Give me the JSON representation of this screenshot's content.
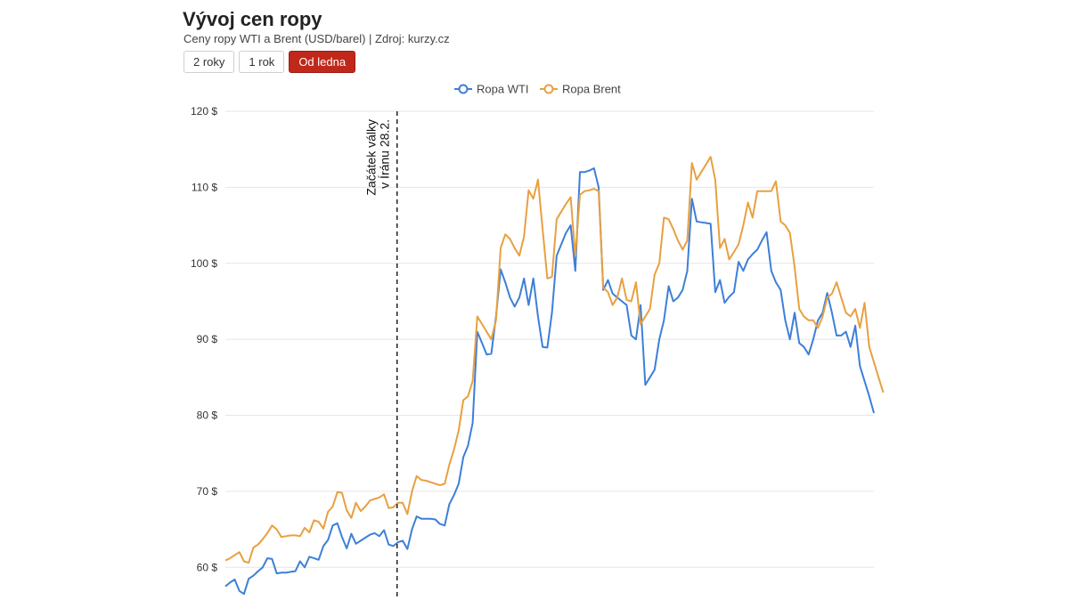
{
  "header": {
    "title": "Vývoj cen ropy",
    "subtitle": "Ceny ropy WTI a Brent (USD/barel) | Zdroj: kurzy.cz"
  },
  "range_buttons": [
    {
      "label": "2 roky",
      "active": false
    },
    {
      "label": "1 rok",
      "active": false
    },
    {
      "label": "Od ledna",
      "active": true
    }
  ],
  "chart_data": {
    "type": "line",
    "ylim": [
      55,
      120
    ],
    "yticks": [
      60,
      70,
      80,
      90,
      100,
      110,
      120
    ],
    "ytick_labels": [
      "60 $",
      "70 $",
      "80 $",
      "90 $",
      "100 $",
      "110 $",
      "120 $"
    ],
    "grid": true,
    "legend": "top-center",
    "annotation": {
      "at_index": 36.8,
      "lines": [
        "Začátek války",
        "v Íránu 28.2."
      ]
    },
    "series": [
      {
        "name": "Ropa WTI",
        "color": "#3d7fd9",
        "values": [
          57.5,
          58.0,
          58.4,
          56.9,
          56.5,
          58.5,
          58.9,
          59.5,
          60.0,
          61.2,
          61.1,
          59.2,
          59.3,
          59.3,
          59.4,
          59.5,
          60.8,
          60.0,
          61.4,
          61.2,
          61.0,
          62.8,
          63.6,
          65.5,
          65.8,
          64.0,
          62.5,
          64.4,
          63.1,
          63.5,
          63.9,
          64.3,
          64.5,
          64.1,
          64.9,
          63.0,
          62.8,
          63.3,
          63.5,
          62.4,
          65.0,
          66.7,
          66.4,
          66.4,
          66.4,
          66.3,
          65.7,
          65.5,
          68.3,
          69.5,
          71.0,
          74.5,
          76.0,
          79.0,
          91.0,
          89.5,
          88.0,
          88.1,
          93.0,
          99.2,
          97.5,
          95.5,
          94.3,
          95.5,
          98.0,
          94.5,
          98.0,
          93.0,
          89.0,
          88.9,
          93.5,
          101.0,
          102.5,
          104.0,
          105.0,
          99.0,
          112.0,
          112.0,
          112.2,
          112.5,
          110.0,
          96.5,
          97.8,
          96.0,
          95.5,
          95.0,
          94.5,
          90.5,
          90.0,
          94.5,
          84.0,
          85.0,
          86.0,
          90.0,
          92.5,
          97.0,
          95.0,
          95.5,
          96.5,
          99.0,
          108.5,
          105.5,
          105.4,
          105.3,
          105.2,
          96.2,
          97.8,
          94.8,
          95.6,
          96.2,
          100.2,
          99.0,
          100.5,
          101.2,
          101.8,
          103.0,
          104.1,
          99.0,
          97.5,
          96.5,
          92.5,
          90.0,
          93.5,
          89.5,
          89.0,
          88.0,
          90.0,
          92.5,
          93.5,
          96.1,
          93.5,
          90.5,
          90.5,
          91.0,
          89.0,
          91.8,
          86.5,
          84.5,
          82.5,
          80.3
        ]
      },
      {
        "name": "Ropa Brent",
        "color": "#e8a040",
        "values": [
          60.9,
          61.2,
          61.6,
          62.0,
          60.8,
          60.6,
          62.6,
          63.0,
          63.7,
          64.5,
          65.5,
          65.0,
          64.0,
          64.1,
          64.2,
          64.2,
          64.1,
          65.2,
          64.6,
          66.2,
          66.0,
          65.1,
          67.3,
          68.0,
          69.9,
          69.8,
          67.5,
          66.5,
          68.5,
          67.4,
          68.0,
          68.8,
          69.0,
          69.2,
          69.6,
          67.8,
          67.9,
          68.5,
          68.5,
          67.0,
          70.0,
          72.0,
          71.5,
          71.4,
          71.2,
          71.0,
          70.8,
          71.0,
          73.5,
          75.5,
          78.0,
          82.0,
          82.5,
          84.5,
          93.0,
          92.0,
          91.0,
          90.0,
          92.5,
          102.0,
          103.8,
          103.2,
          102.0,
          101.0,
          103.5,
          109.6,
          108.5,
          111.0,
          104.5,
          98.0,
          98.2,
          105.8,
          106.8,
          107.8,
          108.7,
          101.0,
          109.0,
          109.5,
          109.6,
          109.8,
          109.5,
          96.8,
          96.2,
          94.5,
          95.5,
          98.0,
          95.2,
          95.0,
          97.5,
          92.0,
          93.0,
          94.0,
          98.5,
          100.0,
          106.0,
          105.8,
          104.5,
          103.0,
          101.8,
          103.0,
          113.2,
          111.0,
          112.0,
          113.0,
          114.0,
          111.0,
          102.0,
          103.2,
          100.5,
          101.5,
          102.5,
          105.0,
          108.0,
          106.0,
          109.5,
          109.5,
          109.5,
          109.5,
          110.8,
          105.5,
          105.0,
          104.0,
          99.5,
          94.0,
          93.0,
          92.5,
          92.5,
          91.5,
          93.0,
          95.5,
          96.0,
          97.5,
          95.5,
          93.5,
          93.0,
          94.0,
          91.5,
          94.8,
          89.0,
          87.0,
          85.0,
          83.0
        ]
      }
    ]
  }
}
